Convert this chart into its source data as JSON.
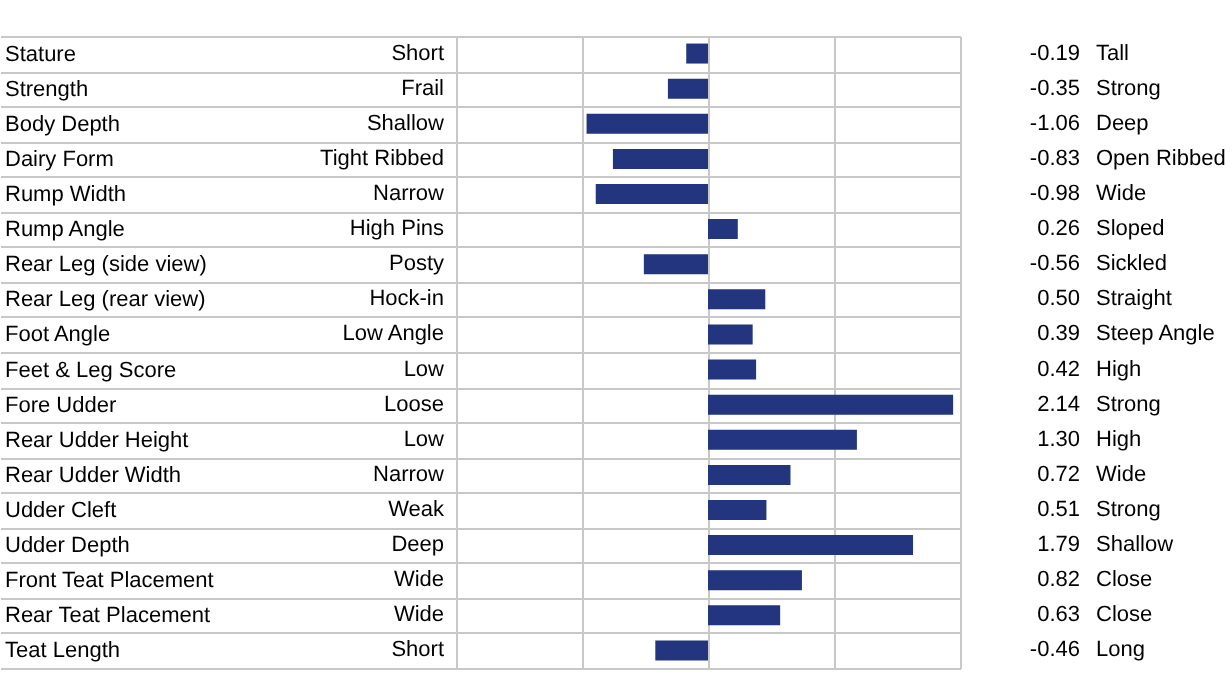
{
  "chart_data": {
    "type": "bar",
    "orientation": "horizontal",
    "categories": [
      "Stature",
      "Strength",
      "Body Depth",
      "Dairy Form",
      "Rump Width",
      "Rump Angle",
      "Rear Leg (side view)",
      "Rear Leg (rear view)",
      "Foot Angle",
      "Feet & Leg Score",
      "Fore Udder",
      "Rear Udder Height",
      "Rear Udder Width",
      "Udder Cleft",
      "Udder Depth",
      "Front Teat Placement",
      "Rear Teat Placement",
      "Teat Length"
    ],
    "values": [
      -0.19,
      -0.35,
      -1.06,
      -0.83,
      -0.98,
      0.26,
      -0.56,
      0.5,
      0.39,
      0.42,
      2.14,
      1.3,
      0.72,
      0.51,
      1.79,
      0.82,
      0.63,
      -0.46
    ],
    "value_labels": [
      "-0.19",
      "-0.35",
      "-1.06",
      "-0.83",
      "-0.98",
      "0.26",
      "-0.56",
      "0.50",
      "0.39",
      "0.42",
      "2.14",
      "1.30",
      "0.72",
      "0.51",
      "1.79",
      "0.82",
      "0.63",
      "-0.46"
    ],
    "color": "#22357e",
    "xlim": [
      -2.2,
      2.2
    ],
    "xticks": [
      {
        "value": -2.2,
        "label": null
      },
      {
        "value": -1.1,
        "label": null
      },
      {
        "value": 0,
        "label": null
      },
      {
        "value": 1.1,
        "label": null
      },
      {
        "value": 2.2,
        "label": null
      }
    ],
    "grid": true,
    "annotations": [
      "Short",
      "Tall",
      "Frail",
      "Strong",
      "Shallow",
      "Deep",
      "Tight Ribbed",
      "Open Ribbed",
      "Narrow",
      "Wide",
      "High Pins",
      "Sloped",
      "Posty",
      "Sickled",
      "Hock-in",
      "Straight",
      "Low Angle",
      "Steep Angle",
      "Low",
      "High",
      "Loose",
      "Strong",
      "Low",
      "High",
      "Narrow",
      "Wide",
      "Weak",
      "Strong",
      "Deep",
      "Shallow",
      "Wide",
      "Close",
      "Wide",
      "Close",
      "Short",
      "Long"
    ]
  }
}
